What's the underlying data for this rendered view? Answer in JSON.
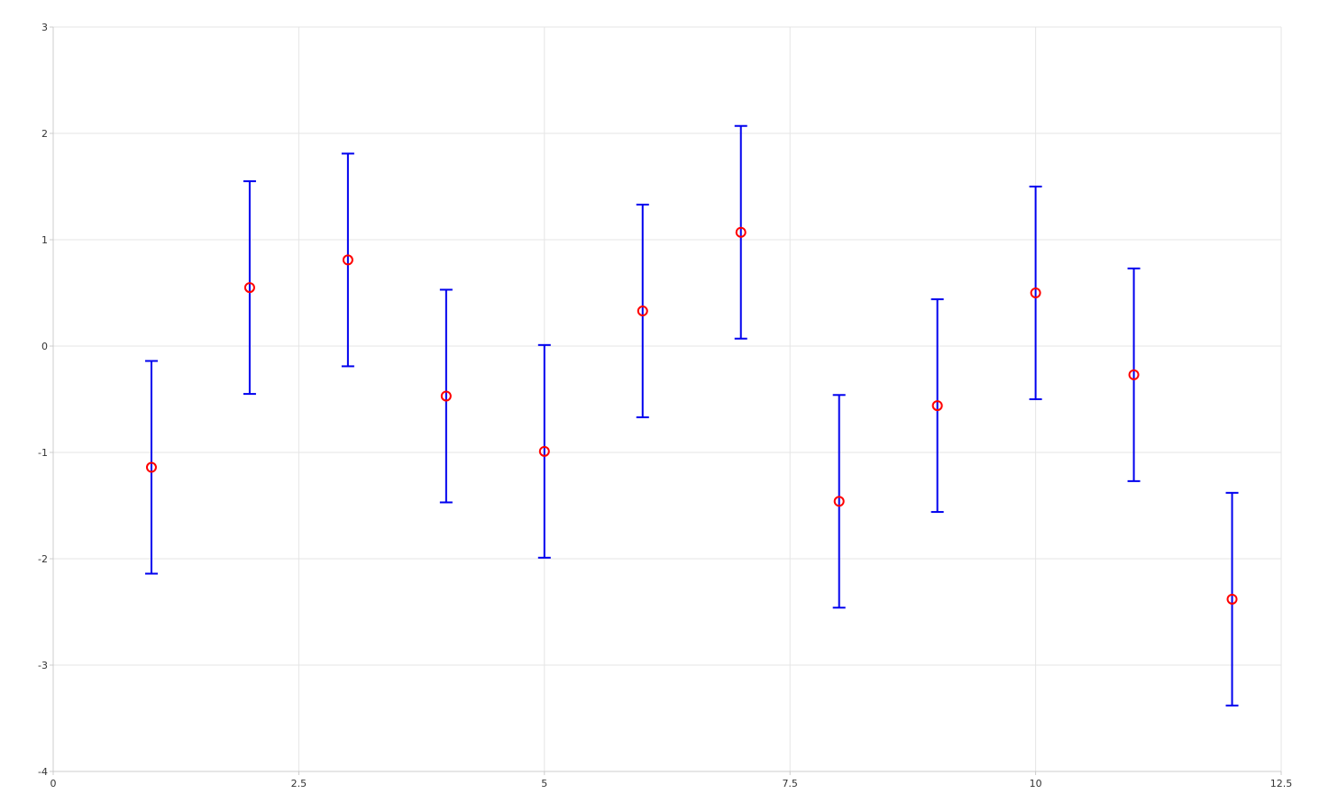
{
  "colors": {
    "background": "#ffffff",
    "grid": "#e5e5e5",
    "axis": "#cccccc",
    "marker": "#ff0000",
    "error_bar": "#0000ee",
    "tick_text": "#333333"
  },
  "chart_data": {
    "type": "scatter",
    "title": "",
    "xlabel": "",
    "ylabel": "",
    "xlim": [
      0,
      12.5
    ],
    "ylim": [
      -4,
      3
    ],
    "grid": true,
    "legend": "none",
    "x_ticks": [
      0,
      2.5,
      5,
      7.5,
      10,
      12.5
    ],
    "x_tick_labels": [
      "0",
      "2.5",
      "5",
      "7.5",
      "10",
      "12.5"
    ],
    "y_ticks": [
      -4,
      -3,
      -2,
      -1,
      0,
      1,
      2,
      3
    ],
    "y_tick_labels": [
      "-4",
      "-3",
      "-2",
      "-1",
      "0",
      "1",
      "2",
      "3"
    ],
    "marker": "open-circle",
    "series": [
      {
        "x": [
          1,
          2,
          3,
          4,
          5,
          6,
          7,
          8,
          9,
          10,
          11,
          12
        ],
        "y": [
          -1.14,
          0.55,
          0.81,
          -0.47,
          -0.99,
          0.33,
          1.07,
          -1.46,
          -0.56,
          0.5,
          -0.27,
          -2.38
        ],
        "error_y": [
          1,
          1,
          1,
          1,
          1,
          1,
          1,
          1,
          1,
          1,
          1,
          1
        ]
      }
    ]
  }
}
